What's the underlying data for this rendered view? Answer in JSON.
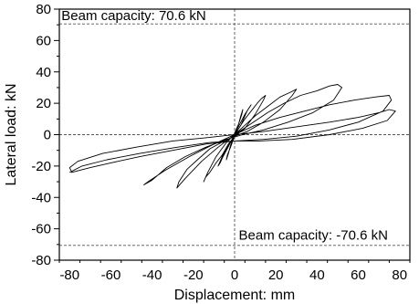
{
  "chart_data": {
    "type": "line",
    "title": "",
    "xlabel": "Displacement: mm",
    "ylabel": "Lateral load: kN",
    "xlim": [
      -85,
      85
    ],
    "ylim": [
      -80,
      80
    ],
    "xticks": [
      -80,
      -60,
      -40,
      -20,
      0,
      20,
      40,
      60,
      80
    ],
    "yticks": [
      -80,
      -60,
      -40,
      -20,
      0,
      20,
      40,
      60,
      80
    ],
    "grid": false,
    "legend": "none",
    "colors": {
      "series": "#000000",
      "reference": "#555555"
    },
    "reference_lines": [
      {
        "orientation": "horizontal",
        "value": 70.6
      },
      {
        "orientation": "horizontal",
        "value": -70.6
      },
      {
        "orientation": "horizontal",
        "value": 0
      },
      {
        "orientation": "vertical",
        "value": 0
      }
    ],
    "annotations": [
      {
        "text": "Beam capacity: 70.6 kN",
        "x": -84,
        "y": 76
      },
      {
        "text": "Beam capacity: -70.6 kN",
        "x": 2,
        "y": -64
      }
    ],
    "series": [
      {
        "points": [
          [
            0,
            0
          ],
          [
            1,
            3
          ],
          [
            2,
            7
          ],
          [
            3,
            12
          ],
          [
            4,
            16
          ],
          [
            3.5,
            13
          ],
          [
            2,
            7
          ],
          [
            0,
            1
          ],
          [
            -1,
            -3
          ],
          [
            -2,
            -7
          ],
          [
            -3,
            -12
          ],
          [
            -4,
            -16
          ],
          [
            -3.5,
            -13
          ],
          [
            -2,
            -8
          ],
          [
            0,
            -1
          ],
          [
            1,
            3
          ],
          [
            3,
            8
          ],
          [
            5,
            13
          ],
          [
            7,
            17
          ],
          [
            8,
            19
          ],
          [
            6,
            15
          ],
          [
            3,
            6
          ],
          [
            0,
            0
          ],
          [
            -2,
            -5
          ],
          [
            -4,
            -10
          ],
          [
            -6,
            -15
          ],
          [
            -7,
            -18
          ],
          [
            -8,
            -20
          ],
          [
            -6,
            -14
          ],
          [
            -3,
            -7
          ],
          [
            0,
            -1
          ],
          [
            2,
            4
          ],
          [
            5,
            10
          ],
          [
            8,
            15
          ],
          [
            11,
            20
          ],
          [
            13,
            23
          ],
          [
            15,
            25
          ],
          [
            14,
            22
          ],
          [
            10,
            13
          ],
          [
            5,
            4
          ],
          [
            0,
            -1
          ],
          [
            -3,
            -6
          ],
          [
            -6,
            -13
          ],
          [
            -9,
            -18
          ],
          [
            -12,
            -24
          ],
          [
            -14,
            -27
          ],
          [
            -15,
            -30
          ],
          [
            -13,
            -24
          ],
          [
            -9,
            -14
          ],
          [
            -4,
            -5
          ],
          [
            0,
            0
          ],
          [
            5,
            6
          ],
          [
            10,
            12
          ],
          [
            16,
            18
          ],
          [
            22,
            24
          ],
          [
            27,
            27
          ],
          [
            30,
            29
          ],
          [
            28,
            25
          ],
          [
            22,
            16
          ],
          [
            14,
            8
          ],
          [
            6,
            2
          ],
          [
            0,
            -1
          ],
          [
            -5,
            -4
          ],
          [
            -12,
            -9
          ],
          [
            -18,
            -16
          ],
          [
            -23,
            -22
          ],
          [
            -27,
            -30
          ],
          [
            -28,
            -34
          ],
          [
            -24,
            -28
          ],
          [
            -16,
            -17
          ],
          [
            -8,
            -8
          ],
          [
            0,
            0
          ],
          [
            8,
            7
          ],
          [
            16,
            14
          ],
          [
            24,
            20
          ],
          [
            32,
            25
          ],
          [
            40,
            28
          ],
          [
            46,
            31
          ],
          [
            50,
            32
          ],
          [
            52,
            30
          ],
          [
            48,
            22
          ],
          [
            38,
            14
          ],
          [
            26,
            8
          ],
          [
            14,
            3
          ],
          [
            4,
            0
          ],
          [
            -4,
            -3
          ],
          [
            -14,
            -8
          ],
          [
            -24,
            -14
          ],
          [
            -33,
            -21
          ],
          [
            -40,
            -29
          ],
          [
            -44,
            -32
          ],
          [
            -42,
            -30
          ],
          [
            -34,
            -23
          ],
          [
            -22,
            -14
          ],
          [
            -10,
            -6
          ],
          [
            0,
            0
          ],
          [
            10,
            6
          ],
          [
            22,
            11
          ],
          [
            34,
            15
          ],
          [
            46,
            19
          ],
          [
            58,
            22
          ],
          [
            68,
            24
          ],
          [
            75,
            25
          ],
          [
            76,
            22
          ],
          [
            72,
            15
          ],
          [
            60,
            8
          ],
          [
            46,
            3
          ],
          [
            30,
            -1
          ],
          [
            14,
            -3
          ],
          [
            0,
            -4
          ],
          [
            -14,
            -6
          ],
          [
            -30,
            -10
          ],
          [
            -46,
            -14
          ],
          [
            -60,
            -18
          ],
          [
            -70,
            -21
          ],
          [
            -79,
            -24
          ],
          [
            -80,
            -21
          ],
          [
            -76,
            -17
          ],
          [
            -64,
            -12
          ],
          [
            -48,
            -8
          ],
          [
            -30,
            -4
          ],
          [
            -14,
            -2
          ],
          [
            0,
            0
          ],
          [
            14,
            2
          ],
          [
            30,
            5
          ],
          [
            46,
            8
          ],
          [
            60,
            11
          ],
          [
            70,
            14
          ],
          [
            75,
            16
          ],
          [
            78,
            15
          ],
          [
            74,
            9
          ],
          [
            62,
            4
          ],
          [
            46,
            0
          ],
          [
            28,
            -3
          ],
          [
            12,
            -4
          ],
          [
            0,
            -4
          ],
          [
            -12,
            -5
          ],
          [
            -28,
            -8
          ],
          [
            -46,
            -12
          ],
          [
            -62,
            -16
          ],
          [
            -74,
            -20
          ],
          [
            -80,
            -24
          ]
        ]
      }
    ]
  }
}
